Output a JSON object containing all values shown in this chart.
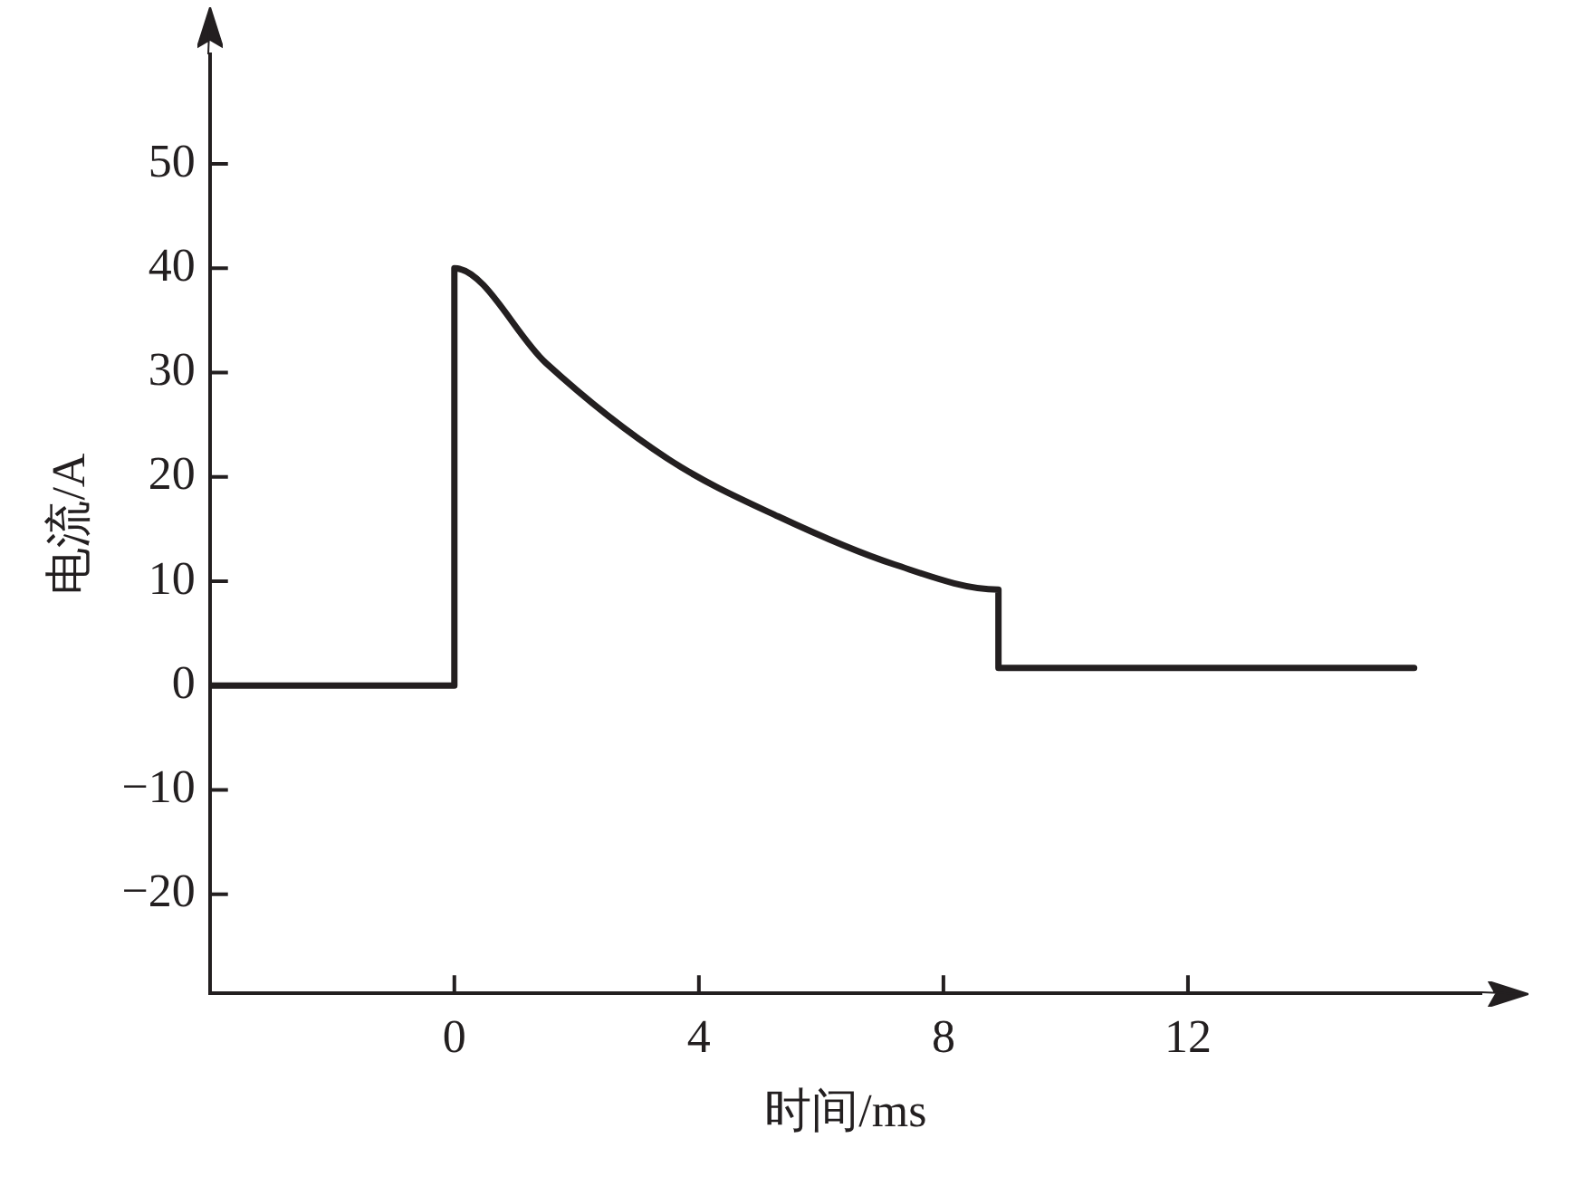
{
  "chart_data": {
    "type": "line",
    "xlabel": "时间/ms",
    "ylabel": "电流/A",
    "xlim": [
      -4,
      16.8
    ],
    "ylim": [
      -29.5,
      60.5
    ],
    "xticks": [
      0,
      4,
      8,
      12
    ],
    "yticks": [
      -20,
      -10,
      0,
      10,
      20,
      30,
      40,
      50
    ],
    "grid": false,
    "marker": "none",
    "line_style": "solid",
    "legend": false,
    "series": [
      {
        "color": "#231f20",
        "x": [
          -4,
          0,
          0,
          1.5,
          3.5,
          5.3,
          7.2,
          8.9,
          8.9,
          15.7
        ],
        "values": [
          0,
          0,
          40,
          30.9,
          21.7,
          16.2,
          11.6,
          9.2,
          1.7,
          1.7
        ]
      }
    ]
  }
}
